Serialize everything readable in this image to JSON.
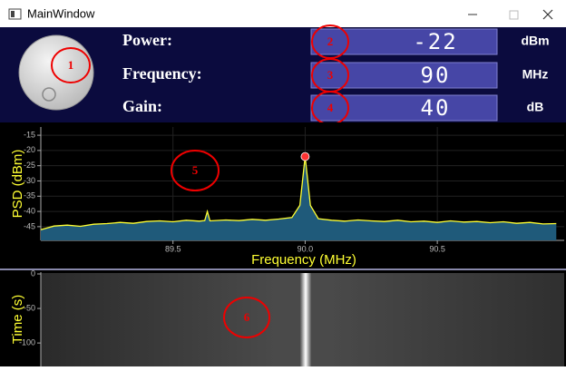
{
  "window": {
    "title": "MainWindow"
  },
  "markers": {
    "knob": "1",
    "spectrum": "5",
    "waterfall": "6"
  },
  "readouts": [
    {
      "label": "Power:",
      "value": -22,
      "unit": "dBm",
      "marker": "2"
    },
    {
      "label": "Frequency:",
      "value": 90,
      "unit": "MHz",
      "marker": "3"
    },
    {
      "label": "Gain:",
      "value": 40,
      "unit": "dB",
      "marker": "4"
    }
  ],
  "chart_data": [
    {
      "type": "line",
      "ylabel": "PSD (dBm)",
      "xlabel": "Frequency (MHz)",
      "x": [
        89.0,
        89.05,
        89.1,
        89.15,
        89.2,
        89.25,
        89.3,
        89.35,
        89.4,
        89.45,
        89.5,
        89.55,
        89.6,
        89.62,
        89.63,
        89.64,
        89.7,
        89.75,
        89.8,
        89.85,
        89.9,
        89.95,
        89.98,
        89.99,
        90.0,
        90.01,
        90.02,
        90.05,
        90.1,
        90.15,
        90.2,
        90.25,
        90.3,
        90.35,
        90.4,
        90.45,
        90.5,
        90.55,
        90.6,
        90.65,
        90.7,
        90.75,
        90.8,
        90.85,
        90.9,
        90.95
      ],
      "series": [
        {
          "color": "#ffff33",
          "fill": "#1f5a7a",
          "values": [
            -46,
            -44.8,
            -44.5,
            -44.9,
            -44.2,
            -44,
            -43.6,
            -43.9,
            -43.3,
            -43.1,
            -43.4,
            -42.9,
            -43.2,
            -43,
            -40,
            -43.1,
            -42.8,
            -43,
            -42.6,
            -42.9,
            -42.5,
            -42,
            -38,
            -30,
            -22,
            -30,
            -38,
            -42.4,
            -42.9,
            -43.2,
            -42.8,
            -43.1,
            -43.3,
            -42.9,
            -43.4,
            -43.2,
            -43.6,
            -43.1,
            -43.5,
            -43.3,
            -43.7,
            -43.4,
            -43.9,
            -43.6,
            -44.1,
            -44
          ]
        }
      ],
      "xlim": [
        89.0,
        90.98
      ],
      "ylim": [
        -49.5,
        -12.3
      ],
      "xticks": [
        89.5,
        {
          "value": 90,
          "label": "90.0"
        },
        90.5
      ],
      "yticks": [
        -15,
        -20,
        -25,
        -30,
        -35,
        -40,
        -45
      ],
      "grid": true,
      "peak_color": "#ff3333"
    },
    {
      "type": "waterfall",
      "ylabel": "Time (s)",
      "ylim": [
        -134,
        0
      ],
      "yticks": [
        0,
        -50,
        -100
      ]
    }
  ]
}
